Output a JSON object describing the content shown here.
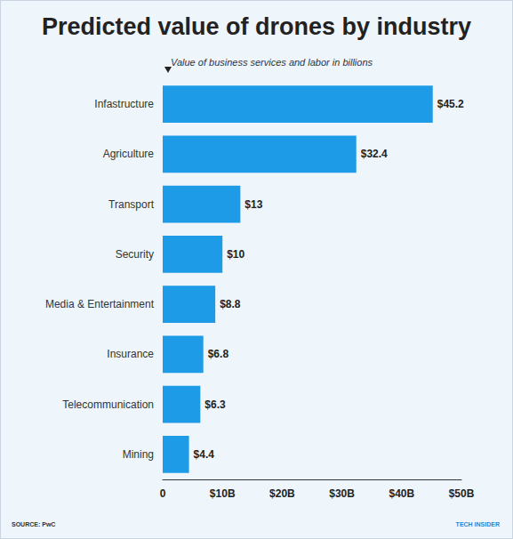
{
  "chart_data": {
    "type": "bar",
    "title": "Predicted value of drones by industry",
    "subtitle": "Value of business services and labor in billions",
    "annotations": [
      "SOURCE: PwC",
      "TECH INSIDER"
    ],
    "orientation": "horizontal",
    "categories": [
      "Infastructure",
      "Agriculture",
      "Transport",
      "Security",
      "Media & Entertainment",
      "Insurance",
      "Telecommunication",
      "Mining"
    ],
    "values": [
      45.2,
      32.4,
      13,
      10,
      8.8,
      6.8,
      6.3,
      4.4
    ],
    "value_labels": [
      "$45.2",
      "$32.4",
      "$13",
      "$10",
      "$8.8",
      "$6.8",
      "$6.3",
      "$4.4"
    ],
    "color": "#1e9be6",
    "data_labels": true,
    "xlim": [
      0,
      50
    ],
    "xticks": [
      0,
      {
        "value": 10,
        "label": "$10B"
      },
      {
        "value": 20,
        "label": "$20B"
      },
      {
        "value": 30,
        "label": "$30B"
      },
      {
        "value": 40,
        "label": "$40B"
      },
      {
        "value": 50,
        "label": "$50B"
      }
    ],
    "grid": false
  }
}
